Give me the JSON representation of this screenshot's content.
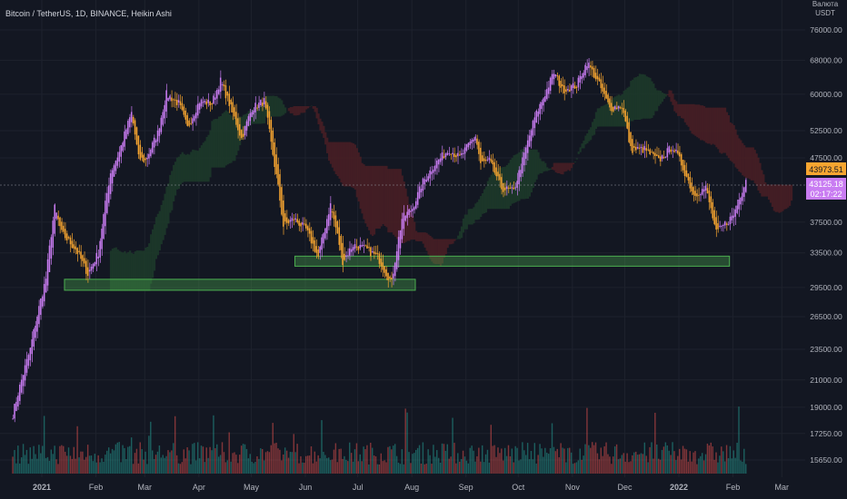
{
  "header": {
    "title": "Bitcoin / TetherUS, 1D, BINANCE, Heikin Ashi"
  },
  "currency": {
    "label": "USDT",
    "label_top": "Валюта"
  },
  "price_tags": {
    "current": {
      "value": "43973.51",
      "color": "#f7a530"
    },
    "ha": {
      "value": "43125.18",
      "countdown": "02:17:22",
      "color": "#c97cf2"
    }
  },
  "colors": {
    "background": "#131722",
    "bull": "#c97cf2",
    "bear": "#f7a530",
    "support": "#4caf50",
    "cloud_green": "#1d3b2a",
    "cloud_red": "#4a1f24",
    "vol_up": "#26a69a",
    "vol_down": "#ef5350"
  },
  "chart_data": {
    "type": "candlestick",
    "title": "Bitcoin / TetherUS, 1D, BINANCE, Heikin Ashi",
    "y_axis": {
      "ticks": [
        "76000.00",
        "68000.00",
        "60000.00",
        "52500.00",
        "47500.00",
        "37500.00",
        "33500.00",
        "29500.00",
        "26500.00",
        "23500.00",
        "21000.00",
        "19000.00",
        "17250.00",
        "15650.00"
      ],
      "ylim": [
        14500,
        84000
      ]
    },
    "x_axis": {
      "labels": [
        "2021",
        "Feb",
        "Mar",
        "Apr",
        "May",
        "Jun",
        "Jul",
        "Aug",
        "Sep",
        "Oct",
        "Nov",
        "Dec",
        "2022",
        "Feb",
        "Mar"
      ]
    },
    "close_path": [
      [
        "2020-12-15",
        18500
      ],
      [
        "2020-12-25",
        23500
      ],
      [
        "2021-01-03",
        30500
      ],
      [
        "2021-01-08",
        39500
      ],
      [
        "2021-01-12",
        36000
      ],
      [
        "2021-01-20",
        34000
      ],
      [
        "2021-01-27",
        31000
      ],
      [
        "2021-02-02",
        33500
      ],
      [
        "2021-02-09",
        45000
      ],
      [
        "2021-02-14",
        48500
      ],
      [
        "2021-02-21",
        56000
      ],
      [
        "2021-02-25",
        47500
      ],
      [
        "2021-03-01",
        47000
      ],
      [
        "2021-03-08",
        52000
      ],
      [
        "2021-03-13",
        60000
      ],
      [
        "2021-03-20",
        58000
      ],
      [
        "2021-03-25",
        53000
      ],
      [
        "2021-04-01",
        58500
      ],
      [
        "2021-04-08",
        58000
      ],
      [
        "2021-04-13",
        63000
      ],
      [
        "2021-04-20",
        56000
      ],
      [
        "2021-04-25",
        51000
      ],
      [
        "2021-05-01",
        57000
      ],
      [
        "2021-05-08",
        58500
      ],
      [
        "2021-05-12",
        50000
      ],
      [
        "2021-05-19",
        37000
      ],
      [
        "2021-05-25",
        38000
      ],
      [
        "2021-06-01",
        36500
      ],
      [
        "2021-06-08",
        33000
      ],
      [
        "2021-06-15",
        40000
      ],
      [
        "2021-06-22",
        32500
      ],
      [
        "2021-06-28",
        34500
      ],
      [
        "2021-07-05",
        34000
      ],
      [
        "2021-07-12",
        33000
      ],
      [
        "2021-07-20",
        30000
      ],
      [
        "2021-07-26",
        38000
      ],
      [
        "2021-08-01",
        39500
      ],
      [
        "2021-08-07",
        43500
      ],
      [
        "2021-08-14",
        46500
      ],
      [
        "2021-08-22",
        49000
      ],
      [
        "2021-08-28",
        47500
      ],
      [
        "2021-09-06",
        51500
      ],
      [
        "2021-09-09",
        46500
      ],
      [
        "2021-09-14",
        47000
      ],
      [
        "2021-09-21",
        42500
      ],
      [
        "2021-09-28",
        42000
      ],
      [
        "2021-10-04",
        48000
      ],
      [
        "2021-10-10",
        55000
      ],
      [
        "2021-10-17",
        61000
      ],
      [
        "2021-10-21",
        65000
      ],
      [
        "2021-10-26",
        61000
      ],
      [
        "2021-11-03",
        62000
      ],
      [
        "2021-11-09",
        67500
      ],
      [
        "2021-11-15",
        63000
      ],
      [
        "2021-11-22",
        57000
      ],
      [
        "2021-11-29",
        57500
      ],
      [
        "2021-12-04",
        49000
      ],
      [
        "2021-12-12",
        49000
      ],
      [
        "2021-12-20",
        47000
      ],
      [
        "2021-12-28",
        49500
      ],
      [
        "2022-01-02",
        46500
      ],
      [
        "2022-01-09",
        41500
      ],
      [
        "2022-01-16",
        42500
      ],
      [
        "2022-01-22",
        36000
      ],
      [
        "2022-01-26",
        37000
      ],
      [
        "2022-02-01",
        38500
      ],
      [
        "2022-02-05",
        41500
      ],
      [
        "2022-02-08",
        44000
      ]
    ],
    "support_zones": [
      {
        "x_start": "2021-01-14",
        "x_end": "2021-08-03",
        "y_low": 29200,
        "y_high": 30400
      },
      {
        "x_start": "2021-05-26",
        "x_end": "2022-01-30",
        "y_low": 31900,
        "y_high": 33100
      }
    ]
  }
}
